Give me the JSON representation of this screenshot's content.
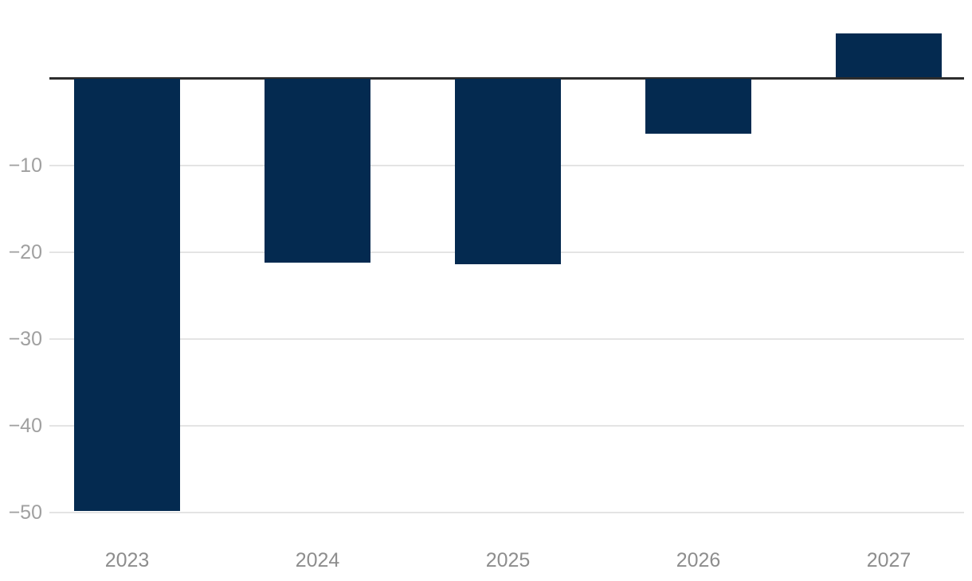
{
  "chart_data": {
    "type": "bar",
    "categories": [
      "2023",
      "2024",
      "2025",
      "2026",
      "2027"
    ],
    "values": [
      -49.8,
      -21.2,
      -21.4,
      -6.4,
      5.0
    ],
    "yticks": [
      -10,
      -20,
      -30,
      -40,
      -50
    ],
    "ytick_labels": [
      "−10",
      "−20",
      "−30",
      "−40",
      "−50"
    ],
    "xtick_labels": [
      "2023",
      "2024",
      "2025",
      "2026",
      "2027"
    ],
    "ylim": [
      -52,
      6
    ],
    "baseline": 0,
    "grid": "horizontal",
    "legend": false
  },
  "colors": {
    "bar": "#042a50",
    "zero_line": "#2d2d2d",
    "gridline": "#e4e4e4",
    "y_tick_label": "#a0a0a0",
    "x_tick_label": "#8d8d8d",
    "background": "#ffffff"
  }
}
